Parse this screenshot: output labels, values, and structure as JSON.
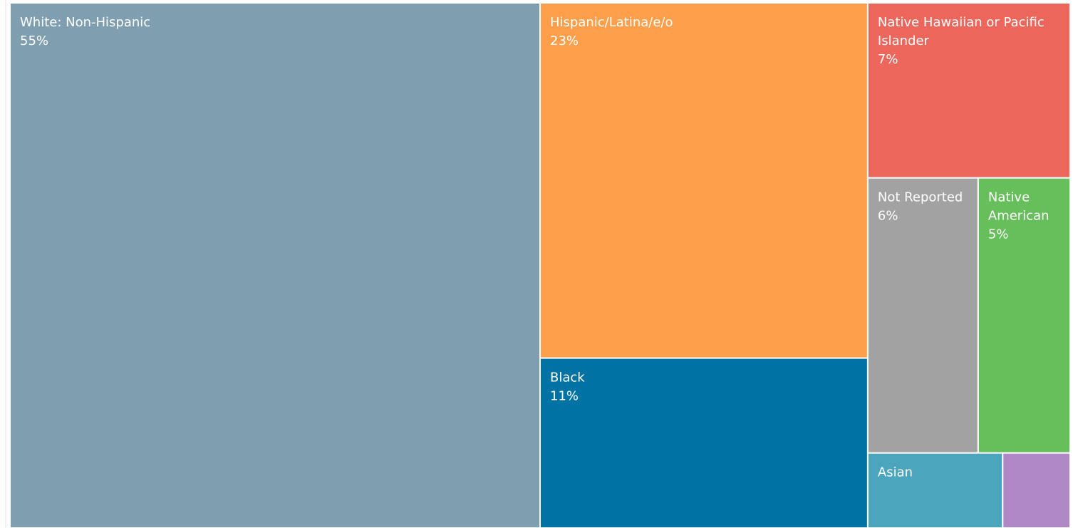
{
  "chart_data": {
    "type": "treemap",
    "categories": [
      "White: Non-Hispanic",
      "Hispanic/Latina/e/o",
      "Black",
      "Native Hawaiian or Pacific Islander",
      "Not Reported",
      "Native American",
      "Asian",
      null
    ],
    "values": [
      55,
      23,
      11,
      7,
      6,
      5,
      2,
      1
    ],
    "value_labels": [
      "55%",
      "23%",
      "11%",
      "7%",
      "6%",
      "5%",
      null,
      null
    ],
    "colors": [
      "#7f9fb0",
      "#fd9e4a",
      "#0072a3",
      "#ec665b",
      "#a2a2a2",
      "#67bf5c",
      "#4ba5bd",
      "#b088c8"
    ]
  }
}
